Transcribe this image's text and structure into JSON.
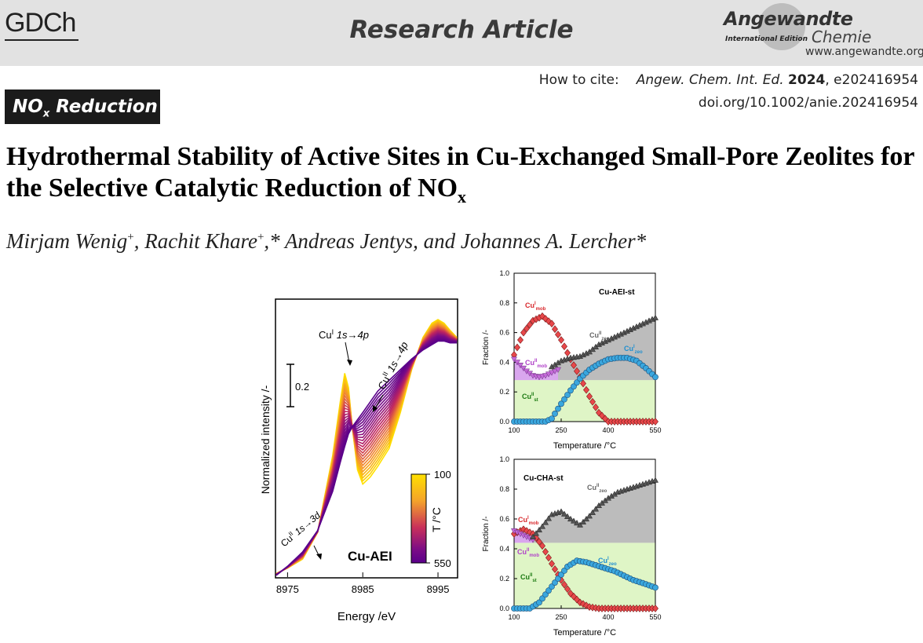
{
  "header": {
    "publisher_logo": "GDCh",
    "section": "Research Article",
    "journal_logo_line1": "Angewandte",
    "journal_logo_line2": "International Edition",
    "journal_logo_line3": "Chemie",
    "journal_url": "www.angewandte.org"
  },
  "citation": {
    "label": "How to cite:",
    "journal": "Angew. Chem. Int. Ed.",
    "year": "2024",
    "article": ", e202416954",
    "doi": "doi.org/10.1002/anie.202416954"
  },
  "topic_tag": {
    "main": "NO",
    "sub": "x",
    "rest": " Reduction"
  },
  "title": {
    "main": "Hydrothermal Stability of Active Sites in Cu-Exchanged Small-Pore Zeolites for the Selective Catalytic Reduction of NO",
    "sub": "x"
  },
  "authors": [
    {
      "name": "Mirjam Wenig",
      "mark": "+",
      "after": ", "
    },
    {
      "name": "Rachit Khare",
      "mark": "+",
      "after": ",* "
    },
    {
      "name": "Andreas Jentys",
      "mark": "",
      "after": ", and "
    },
    {
      "name": "Johannes A. Lercher",
      "mark": "",
      "after": "*"
    }
  ],
  "chart_data": [
    {
      "type": "line",
      "name": "XANES spectra",
      "xlabel": "Energy /eV",
      "ylabel": "Normalized intensity /-",
      "xlim": [
        8973.5,
        8997.5
      ],
      "xticks": [
        8975,
        8985,
        8995
      ],
      "scale_bar_label": "0.2",
      "inset_label": "Cu-AEI",
      "colorbar": {
        "label": "T /°C",
        "ticks": [
          "100",
          "550"
        ],
        "colors": [
          "#ffe000",
          "#f28a2c",
          "#c3265c",
          "#7b0c86",
          "#5a008a"
        ]
      },
      "annotations": [
        {
          "sup": "I",
          "text": "Cu",
          "rest": " 1s→4p"
        },
        {
          "sup": "II",
          "text": "Cu",
          "rest": " 1s→4p"
        },
        {
          "sup": "II",
          "text": "Cu",
          "rest": " 1s→3d"
        }
      ],
      "curve_ranges": {
        "x": [
          8973.5,
          8975,
          8977,
          8979,
          8981,
          8982,
          8982.6,
          8983.1,
          8983.6,
          8984.3,
          8985,
          8986,
          8987,
          8988.5,
          8990,
          8991.5,
          8993,
          8994.2,
          8995,
          8995.8,
          8996.6,
          8997.5
        ],
        "y_low_T": [
          0.02,
          0.05,
          0.1,
          0.25,
          0.68,
          0.98,
          1.14,
          1.06,
          0.84,
          0.6,
          0.52,
          0.56,
          0.62,
          0.72,
          0.92,
          1.16,
          1.34,
          1.42,
          1.44,
          1.42,
          1.38,
          1.34
        ],
        "y_high_T": [
          0.01,
          0.06,
          0.14,
          0.26,
          0.48,
          0.64,
          0.73,
          0.8,
          0.84,
          0.88,
          0.92,
          0.98,
          1.04,
          1.1,
          1.16,
          1.22,
          1.27,
          1.3,
          1.32,
          1.32,
          1.31,
          1.31
        ]
      },
      "y_range": [
        0,
        1.55
      ]
    },
    {
      "type": "scatter",
      "name": "Cu-AEI-st",
      "xlabel": "Temperature /°C",
      "ylabel": "Fraction /-",
      "xlim": [
        100,
        550
      ],
      "ylim": [
        0,
        1
      ],
      "xticks": [
        100,
        250,
        400,
        550
      ],
      "yticks": [
        0.0,
        0.2,
        0.4,
        0.6,
        0.8,
        1.0
      ],
      "baseline": 0.28,
      "labels": [
        "Cu-AEI-st",
        "Cu",
        "I",
        "mob",
        "II",
        "zeo",
        "st"
      ],
      "series": [
        {
          "species": "CuI_mob",
          "color": "#e8474a",
          "marker": "diamond",
          "x": [
            100,
            130,
            160,
            190,
            220,
            250,
            280,
            310,
            340,
            370,
            400,
            430,
            460,
            490,
            520,
            550
          ],
          "y": [
            0.45,
            0.6,
            0.68,
            0.71,
            0.66,
            0.55,
            0.42,
            0.3,
            0.17,
            0.06,
            0,
            0,
            0,
            0,
            0,
            0
          ]
        },
        {
          "species": "CuII_mob",
          "color": "#c46ad8",
          "marker": "triangle-down",
          "x": [
            100,
            120,
            140,
            160,
            180,
            200,
            220,
            240
          ],
          "y": [
            0.42,
            0.38,
            0.34,
            0.31,
            0.3,
            0.31,
            0.33,
            0.35
          ]
        },
        {
          "species": "CuII_zeo",
          "color": "#888888",
          "marker": "triangle-up",
          "x": [
            220,
            250,
            280,
            310,
            340,
            370,
            400,
            430,
            460,
            490,
            520,
            550
          ],
          "y": [
            0.37,
            0.41,
            0.43,
            0.44,
            0.47,
            0.52,
            0.55,
            0.58,
            0.61,
            0.64,
            0.67,
            0.7
          ]
        },
        {
          "species": "CuI_zeo",
          "color": "#3aa7de",
          "marker": "circle",
          "x": [
            100,
            150,
            200,
            220,
            250,
            280,
            310,
            340,
            370,
            400,
            430,
            460,
            490,
            520,
            550
          ],
          "y": [
            0,
            0,
            0,
            0.02,
            0.12,
            0.21,
            0.29,
            0.35,
            0.39,
            0.42,
            0.43,
            0.43,
            0.41,
            0.36,
            0.3
          ]
        }
      ]
    },
    {
      "type": "scatter",
      "name": "Cu-CHA-st",
      "xlabel": "Temperature /°C",
      "ylabel": "Fraction /-",
      "xlim": [
        100,
        550
      ],
      "ylim": [
        0,
        1
      ],
      "xticks": [
        100,
        250,
        400,
        550
      ],
      "yticks": [
        0.0,
        0.2,
        0.4,
        0.6,
        0.8,
        1.0
      ],
      "baseline": 0.44,
      "labels": [
        "Cu-CHA-st",
        "Cu",
        "I",
        "mob",
        "II",
        "zeo",
        "st"
      ],
      "series": [
        {
          "species": "CuI_mob",
          "color": "#e8474a",
          "marker": "diamond",
          "x": [
            100,
            130,
            160,
            190,
            220,
            250,
            280,
            310,
            340,
            370,
            400,
            430,
            460,
            490,
            520,
            550
          ],
          "y": [
            0.5,
            0.53,
            0.5,
            0.42,
            0.3,
            0.19,
            0.1,
            0.04,
            0.01,
            0,
            0,
            0,
            0,
            0,
            0,
            0
          ]
        },
        {
          "species": "CuII_mob",
          "color": "#c46ad8",
          "marker": "triangle-down",
          "x": [
            100,
            120,
            140,
            160
          ],
          "y": [
            0.52,
            0.5,
            0.48,
            0.46
          ]
        },
        {
          "species": "CuII_zeo",
          "color": "#888888",
          "marker": "triangle-up",
          "x": [
            160,
            190,
            220,
            250,
            280,
            310,
            340,
            370,
            400,
            430,
            460,
            490,
            520,
            550
          ],
          "y": [
            0.48,
            0.55,
            0.63,
            0.65,
            0.6,
            0.56,
            0.62,
            0.69,
            0.74,
            0.78,
            0.8,
            0.82,
            0.84,
            0.86
          ]
        },
        {
          "species": "CuI_zeo",
          "color": "#3aa7de",
          "marker": "circle",
          "x": [
            100,
            150,
            180,
            210,
            240,
            270,
            300,
            330,
            360,
            390,
            420,
            450,
            480,
            510,
            550
          ],
          "y": [
            0,
            0,
            0.04,
            0.12,
            0.2,
            0.28,
            0.32,
            0.31,
            0.29,
            0.27,
            0.25,
            0.22,
            0.19,
            0.17,
            0.14
          ]
        }
      ]
    }
  ]
}
